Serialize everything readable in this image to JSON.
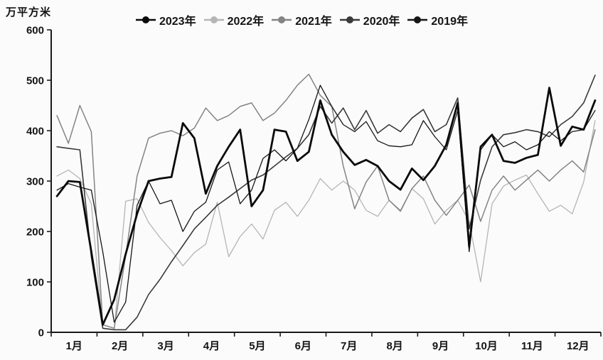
{
  "page": {
    "background": "#fbfbfb"
  },
  "chart_data": {
    "type": "line",
    "title": "",
    "ylabel": "万平方米",
    "xlabel": "",
    "ylim": [
      0,
      600
    ],
    "yticks": [
      0,
      100,
      200,
      300,
      400,
      500,
      600
    ],
    "x_categories": [
      "1月",
      "2月",
      "3月",
      "4月",
      "5月",
      "6月",
      "7月",
      "8月",
      "9月",
      "10月",
      "11月",
      "12月"
    ],
    "points_per_month": 4,
    "grid": false,
    "legend_position": "top-center",
    "axis_color": "#1a1a1a",
    "text_color": "#141414",
    "draw_order": [
      1,
      2,
      3,
      4,
      0
    ],
    "series": [
      {
        "name": "2023年",
        "color": "#0a0a0a",
        "line_width": 2.8,
        "values": [
          270,
          300,
          298,
          160,
          15,
          65,
          155,
          235,
          300,
          305,
          308,
          415,
          385,
          275,
          330,
          368,
          402,
          250,
          282,
          402,
          398,
          340,
          358,
          460,
          392,
          358,
          332,
          342,
          330,
          300,
          283,
          325,
          302,
          330,
          372,
          455,
          170,
          368,
          392,
          340,
          336,
          346,
          352,
          485,
          370,
          408,
          402,
          460
        ]
      },
      {
        "name": "2022年",
        "color": "#b5b5b5",
        "line_width": 1.3,
        "values": [
          310,
          322,
          305,
          255,
          8,
          5,
          260,
          265,
          218,
          188,
          162,
          132,
          158,
          175,
          258,
          150,
          190,
          215,
          185,
          242,
          258,
          230,
          262,
          305,
          282,
          300,
          282,
          242,
          230,
          262,
          242,
          285,
          265,
          215,
          242,
          262,
          220,
          100,
          255,
          290,
          302,
          312,
          275,
          240,
          252,
          235,
          298,
          420
        ]
      },
      {
        "name": "2021年",
        "color": "#848484",
        "line_width": 1.5,
        "values": [
          430,
          375,
          450,
          398,
          15,
          8,
          152,
          310,
          385,
          395,
          400,
          390,
          405,
          445,
          420,
          430,
          448,
          455,
          420,
          435,
          460,
          490,
          512,
          470,
          448,
          330,
          245,
          298,
          330,
          262,
          240,
          285,
          310,
          262,
          232,
          262,
          292,
          220,
          282,
          310,
          282,
          302,
          322,
          300,
          322,
          340,
          318,
          402
        ]
      },
      {
        "name": "2020年",
        "color": "#3a3a3a",
        "line_width": 1.6,
        "values": [
          368,
          365,
          362,
          150,
          8,
          5,
          5,
          30,
          75,
          105,
          140,
          172,
          205,
          228,
          252,
          268,
          285,
          302,
          312,
          330,
          348,
          365,
          392,
          448,
          415,
          445,
          402,
          440,
          395,
          412,
          398,
          425,
          442,
          398,
          412,
          465,
          205,
          302,
          368,
          392,
          396,
          402,
          398,
          388,
          412,
          428,
          455,
          510
        ]
      },
      {
        "name": "2019年",
        "color": "#161616",
        "line_width": 1.3,
        "values": [
          282,
          295,
          288,
          282,
          160,
          20,
          60,
          252,
          300,
          255,
          262,
          200,
          240,
          258,
          322,
          338,
          255,
          282,
          345,
          362,
          340,
          365,
          422,
          490,
          448,
          412,
          398,
          418,
          380,
          370,
          368,
          372,
          420,
          388,
          362,
          440,
          160,
          362,
          392,
          368,
          378,
          362,
          372,
          398,
          380,
          398,
          402,
          440
        ]
      }
    ]
  }
}
